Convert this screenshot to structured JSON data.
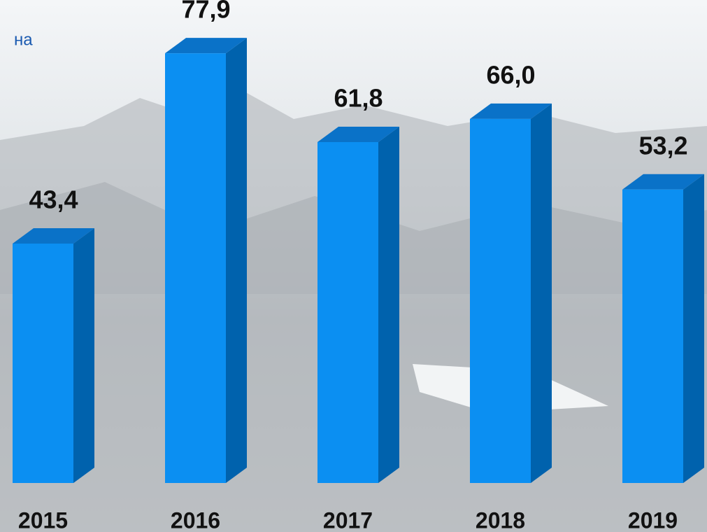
{
  "chart_data": {
    "type": "bar3d",
    "title": "на",
    "categories": [
      "2015",
      "2016",
      "2017",
      "2018",
      "2019"
    ],
    "values": [
      43.4,
      77.9,
      61.8,
      66.0,
      53.2
    ],
    "value_labels": [
      "43,4",
      "77,9",
      "61,8",
      "66,0",
      "53,2"
    ],
    "color": "#0b8ff2"
  }
}
